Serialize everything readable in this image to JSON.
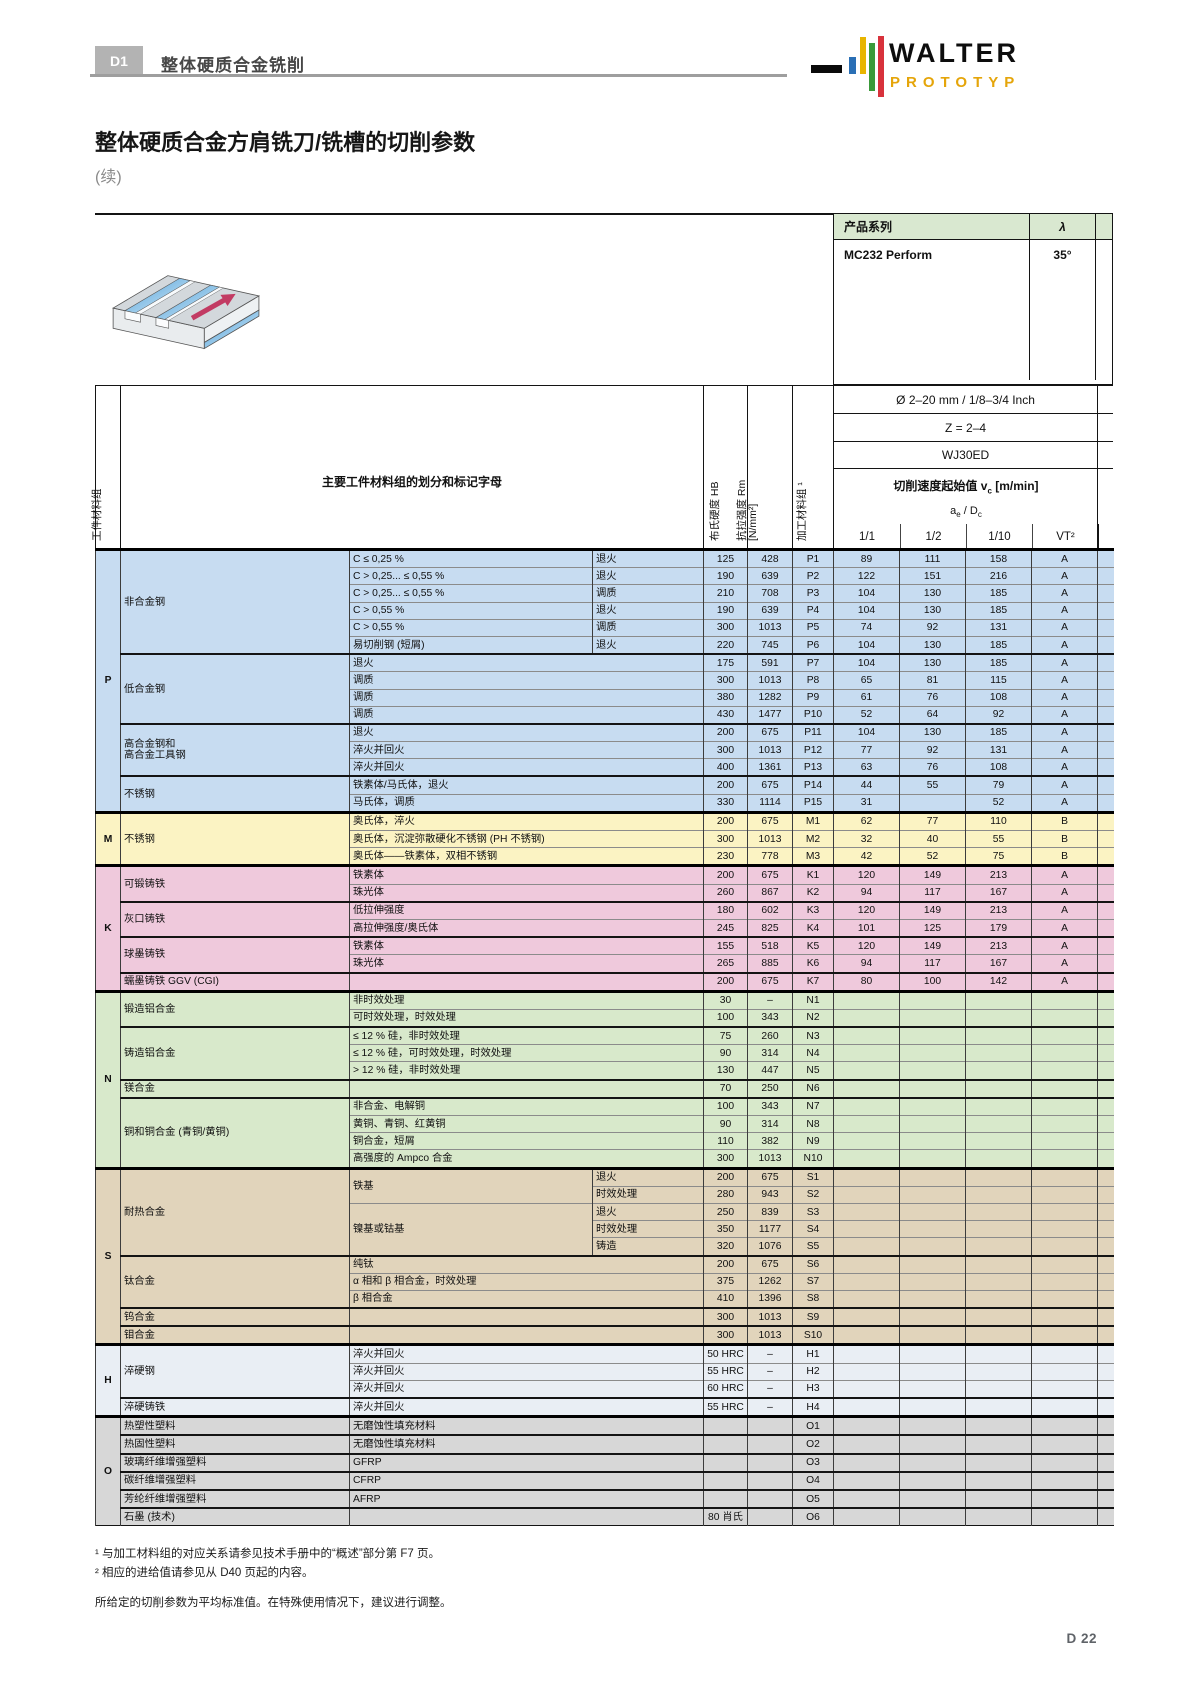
{
  "page": {
    "section_tab": "D1",
    "section_title": "整体硬质合金铣削",
    "brand": "WALTER",
    "brand_sub": "PROTOTYP",
    "title": "整体硬质合金方肩铣刀/铣槽的切削参数",
    "subtitle": "(续)",
    "page_number": "D 22"
  },
  "product_table": {
    "series_label": "产品系列",
    "lambda_label": "λ",
    "series_name": "MC232 Perform",
    "lambda_value": "35°"
  },
  "tool_header": {
    "diameter": "Ø 2–20 mm / 1/8–3/4 Inch",
    "teeth": "Z = 2–4",
    "grade": "WJ30ED",
    "speed_title_pre": "切削速度起始值 v",
    "speed_title_sub": "c",
    "speed_title_post": " [m/min]",
    "ratio_pre": "a",
    "ratio_sub": "e",
    "ratio_mid": " / D",
    "ratio_sub2": "c",
    "cols": [
      "1/1",
      "1/2",
      "1/10",
      "VT²"
    ]
  },
  "table_head": {
    "material_group": "工件材料组",
    "classification": "主要工件材料组的划分和标记字母",
    "hardness": "布氏硬度 HB",
    "strength_l1": "抗拉强度 Rm",
    "strength_l2": "[N/mm²]",
    "machining_group": "加工材料组 ¹"
  },
  "material_table": {
    "groups": [
      {
        "letter": "P",
        "color": "#c7dcf1",
        "blocks": [
          {
            "cat": "非合金钢",
            "rows": [
              {
                "d": "C ≤ 0,25 %",
                "t": "退火",
                "hb": "125",
                "rm": "428",
                "c": "P1",
                "v": [
                  "89",
                  "111",
                  "158",
                  "A"
                ]
              },
              {
                "d": "C > 0,25... ≤ 0,55 %",
                "t": "退火",
                "hb": "190",
                "rm": "639",
                "c": "P2",
                "v": [
                  "122",
                  "151",
                  "216",
                  "A"
                ]
              },
              {
                "d": "C > 0,25... ≤ 0,55 %",
                "t": "调质",
                "hb": "210",
                "rm": "708",
                "c": "P3",
                "v": [
                  "104",
                  "130",
                  "185",
                  "A"
                ]
              },
              {
                "d": "C > 0,55 %",
                "t": "退火",
                "hb": "190",
                "rm": "639",
                "c": "P4",
                "v": [
                  "104",
                  "130",
                  "185",
                  "A"
                ]
              },
              {
                "d": "C > 0,55 %",
                "t": "调质",
                "hb": "300",
                "rm": "1013",
                "c": "P5",
                "v": [
                  "74",
                  "92",
                  "131",
                  "A"
                ]
              },
              {
                "d": "易切削钢 (短屑)",
                "t": "退火",
                "hb": "220",
                "rm": "745",
                "c": "P6",
                "v": [
                  "104",
                  "130",
                  "185",
                  "A"
                ]
              }
            ]
          },
          {
            "cat": "低合金钢",
            "rows": [
              {
                "d": "退火",
                "hb": "175",
                "rm": "591",
                "c": "P7",
                "v": [
                  "104",
                  "130",
                  "185",
                  "A"
                ]
              },
              {
                "d": "调质",
                "hb": "300",
                "rm": "1013",
                "c": "P8",
                "v": [
                  "65",
                  "81",
                  "115",
                  "A"
                ]
              },
              {
                "d": "调质",
                "hb": "380",
                "rm": "1282",
                "c": "P9",
                "v": [
                  "61",
                  "76",
                  "108",
                  "A"
                ]
              },
              {
                "d": "调质",
                "hb": "430",
                "rm": "1477",
                "c": "P10",
                "v": [
                  "52",
                  "64",
                  "92",
                  "A"
                ]
              }
            ]
          },
          {
            "cat": "高合金钢和\n高合金工具钢",
            "rows": [
              {
                "d": "退火",
                "hb": "200",
                "rm": "675",
                "c": "P11",
                "v": [
                  "104",
                  "130",
                  "185",
                  "A"
                ]
              },
              {
                "d": "淬火并回火",
                "hb": "300",
                "rm": "1013",
                "c": "P12",
                "v": [
                  "77",
                  "92",
                  "131",
                  "A"
                ]
              },
              {
                "d": "淬火并回火",
                "hb": "400",
                "rm": "1361",
                "c": "P13",
                "v": [
                  "63",
                  "76",
                  "108",
                  "A"
                ]
              }
            ]
          },
          {
            "cat": "不锈钢",
            "rows": [
              {
                "d": "铁素体/马氏体，退火",
                "hb": "200",
                "rm": "675",
                "c": "P14",
                "v": [
                  "44",
                  "55",
                  "79",
                  "A"
                ]
              },
              {
                "d": "马氏体，调质",
                "hb": "330",
                "rm": "1114",
                "c": "P15",
                "v": [
                  "31",
                  "",
                  "52",
                  "A"
                ]
              }
            ]
          }
        ]
      },
      {
        "letter": "M",
        "color": "#fbf3c3",
        "blocks": [
          {
            "cat": "不锈钢",
            "rows": [
              {
                "d": "奥氏体，淬火",
                "hb": "200",
                "rm": "675",
                "c": "M1",
                "v": [
                  "62",
                  "77",
                  "110",
                  "B"
                ]
              },
              {
                "d": "奥氏体，沉淀弥散硬化不锈钢 (PH 不锈钢)",
                "hb": "300",
                "rm": "1013",
                "c": "M2",
                "v": [
                  "32",
                  "40",
                  "55",
                  "B"
                ]
              },
              {
                "d": "奥氏体——铁素体，双相不锈钢",
                "hb": "230",
                "rm": "778",
                "c": "M3",
                "v": [
                  "42",
                  "52",
                  "75",
                  "B"
                ]
              }
            ]
          }
        ]
      },
      {
        "letter": "K",
        "color": "#efc9dc",
        "blocks": [
          {
            "cat": "可锻铸铁",
            "rows": [
              {
                "d": "铁素体",
                "hb": "200",
                "rm": "675",
                "c": "K1",
                "v": [
                  "120",
                  "149",
                  "213",
                  "A"
                ]
              },
              {
                "d": "珠光体",
                "hb": "260",
                "rm": "867",
                "c": "K2",
                "v": [
                  "94",
                  "117",
                  "167",
                  "A"
                ]
              }
            ]
          },
          {
            "cat": "灰口铸铁",
            "rows": [
              {
                "d": "低拉伸强度",
                "hb": "180",
                "rm": "602",
                "c": "K3",
                "v": [
                  "120",
                  "149",
                  "213",
                  "A"
                ]
              },
              {
                "d": "高拉伸强度/奥氏体",
                "hb": "245",
                "rm": "825",
                "c": "K4",
                "v": [
                  "101",
                  "125",
                  "179",
                  "A"
                ]
              }
            ]
          },
          {
            "cat": "球墨铸铁",
            "rows": [
              {
                "d": "铁素体",
                "hb": "155",
                "rm": "518",
                "c": "K5",
                "v": [
                  "120",
                  "149",
                  "213",
                  "A"
                ]
              },
              {
                "d": "珠光体",
                "hb": "265",
                "rm": "885",
                "c": "K6",
                "v": [
                  "94",
                  "117",
                  "167",
                  "A"
                ]
              }
            ]
          },
          {
            "cat": "蠕墨铸铁 GGV (CGI)",
            "rows": [
              {
                "d": "",
                "hb": "200",
                "rm": "675",
                "c": "K7",
                "v": [
                  "80",
                  "100",
                  "142",
                  "A"
                ]
              }
            ]
          }
        ]
      },
      {
        "letter": "N",
        "color": "#d8e9cb",
        "blocks": [
          {
            "cat": "锻造铝合金",
            "rows": [
              {
                "d": "非时效处理",
                "hb": "30",
                "rm": "–",
                "c": "N1",
                "v": [
                  "",
                  "",
                  "",
                  ""
                ]
              },
              {
                "d": "可时效处理，时效处理",
                "hb": "100",
                "rm": "343",
                "c": "N2",
                "v": [
                  "",
                  "",
                  "",
                  ""
                ]
              }
            ]
          },
          {
            "cat": "铸造铝合金",
            "rows": [
              {
                "d": "≤ 12 % 硅，非时效处理",
                "hb": "75",
                "rm": "260",
                "c": "N3",
                "v": [
                  "",
                  "",
                  "",
                  ""
                ]
              },
              {
                "d": "≤ 12 % 硅，可时效处理，时效处理",
                "hb": "90",
                "rm": "314",
                "c": "N4",
                "v": [
                  "",
                  "",
                  "",
                  ""
                ]
              },
              {
                "d": "> 12 % 硅，非时效处理",
                "hb": "130",
                "rm": "447",
                "c": "N5",
                "v": [
                  "",
                  "",
                  "",
                  ""
                ]
              }
            ]
          },
          {
            "cat": "镁合金",
            "rows": [
              {
                "d": "",
                "hb": "70",
                "rm": "250",
                "c": "N6",
                "v": [
                  "",
                  "",
                  "",
                  ""
                ]
              }
            ]
          },
          {
            "cat": "铜和铜合金 (青铜/黄铜)",
            "rows": [
              {
                "d": "非合金、电解铜",
                "hb": "100",
                "rm": "343",
                "c": "N7",
                "v": [
                  "",
                  "",
                  "",
                  ""
                ]
              },
              {
                "d": "黄铜、青铜、红黄铜",
                "hb": "90",
                "rm": "314",
                "c": "N8",
                "v": [
                  "",
                  "",
                  "",
                  ""
                ]
              },
              {
                "d": "铜合金，短屑",
                "hb": "110",
                "rm": "382",
                "c": "N9",
                "v": [
                  "",
                  "",
                  "",
                  ""
                ]
              },
              {
                "d": "高强度的 Ampco 合金",
                "hb": "300",
                "rm": "1013",
                "c": "N10",
                "v": [
                  "",
                  "",
                  "",
                  ""
                ]
              }
            ]
          }
        ]
      },
      {
        "letter": "S",
        "color": "#e1d4bb",
        "blocks": [
          {
            "cat": "耐热合金",
            "rows": [
              {
                "d": "铁基",
                "ds": 2,
                "t": "退火",
                "hb": "200",
                "rm": "675",
                "c": "S1",
                "v": [
                  "",
                  "",
                  "",
                  ""
                ]
              },
              {
                "d": null,
                "t": "时效处理",
                "hb": "280",
                "rm": "943",
                "c": "S2",
                "v": [
                  "",
                  "",
                  "",
                  ""
                ]
              },
              {
                "d": "镍基或钴基",
                "ds": 3,
                "t": "退火",
                "hb": "250",
                "rm": "839",
                "c": "S3",
                "v": [
                  "",
                  "",
                  "",
                  ""
                ]
              },
              {
                "d": null,
                "t": "时效处理",
                "hb": "350",
                "rm": "1177",
                "c": "S4",
                "v": [
                  "",
                  "",
                  "",
                  ""
                ]
              },
              {
                "d": null,
                "t": "铸造",
                "hb": "320",
                "rm": "1076",
                "c": "S5",
                "v": [
                  "",
                  "",
                  "",
                  ""
                ]
              }
            ]
          },
          {
            "cat": "钛合金",
            "rows": [
              {
                "d": "纯钛",
                "hb": "200",
                "rm": "675",
                "c": "S6",
                "v": [
                  "",
                  "",
                  "",
                  ""
                ]
              },
              {
                "d": "α 相和 β 相合金，时效处理",
                "hb": "375",
                "rm": "1262",
                "c": "S7",
                "v": [
                  "",
                  "",
                  "",
                  ""
                ]
              },
              {
                "d": "β 相合金",
                "hb": "410",
                "rm": "1396",
                "c": "S8",
                "v": [
                  "",
                  "",
                  "",
                  ""
                ]
              }
            ]
          },
          {
            "cat": "钨合金",
            "rows": [
              {
                "d": "",
                "hb": "300",
                "rm": "1013",
                "c": "S9",
                "v": [
                  "",
                  "",
                  "",
                  ""
                ]
              }
            ]
          },
          {
            "cat": "钼合金",
            "rows": [
              {
                "d": "",
                "hb": "300",
                "rm": "1013",
                "c": "S10",
                "v": [
                  "",
                  "",
                  "",
                  ""
                ]
              }
            ]
          }
        ]
      },
      {
        "letter": "H",
        "color": "#e9eef4",
        "blocks": [
          {
            "cat": "淬硬钢",
            "rows": [
              {
                "d": "淬火并回火",
                "hb": "50 HRC",
                "rm": "–",
                "c": "H1",
                "v": [
                  "",
                  "",
                  "",
                  ""
                ]
              },
              {
                "d": "淬火并回火",
                "hb": "55 HRC",
                "rm": "–",
                "c": "H2",
                "v": [
                  "",
                  "",
                  "",
                  ""
                ]
              },
              {
                "d": "淬火并回火",
                "hb": "60 HRC",
                "rm": "–",
                "c": "H3",
                "v": [
                  "",
                  "",
                  "",
                  ""
                ]
              }
            ]
          },
          {
            "cat": "淬硬铸铁",
            "rows": [
              {
                "d": "淬火并回火",
                "hb": "55 HRC",
                "rm": "–",
                "c": "H4",
                "v": [
                  "",
                  "",
                  "",
                  ""
                ]
              }
            ]
          }
        ]
      },
      {
        "letter": "O",
        "color": "#d7d7d7",
        "blocks": [
          {
            "cat": "热塑性塑料",
            "rows": [
              {
                "d": "无磨蚀性填充材料",
                "hb": "",
                "rm": "",
                "c": "O1",
                "v": [
                  "",
                  "",
                  "",
                  ""
                ]
              }
            ]
          },
          {
            "cat": "热固性塑料",
            "rows": [
              {
                "d": "无磨蚀性填充材料",
                "hb": "",
                "rm": "",
                "c": "O2",
                "v": [
                  "",
                  "",
                  "",
                  ""
                ]
              }
            ]
          },
          {
            "cat": "玻璃纤维增强塑料",
            "rows": [
              {
                "d": "GFRP",
                "hb": "",
                "rm": "",
                "c": "O3",
                "v": [
                  "",
                  "",
                  "",
                  ""
                ]
              }
            ]
          },
          {
            "cat": "碳纤维增强塑料",
            "rows": [
              {
                "d": "CFRP",
                "hb": "",
                "rm": "",
                "c": "O4",
                "v": [
                  "",
                  "",
                  "",
                  ""
                ]
              }
            ]
          },
          {
            "cat": "芳纶纤维增强塑料",
            "rows": [
              {
                "d": "AFRP",
                "hb": "",
                "rm": "",
                "c": "O5",
                "v": [
                  "",
                  "",
                  "",
                  ""
                ]
              }
            ]
          },
          {
            "cat": "石墨 (技术)",
            "rows": [
              {
                "d": "",
                "hb": "80 肖氏",
                "rm": "",
                "c": "O6",
                "v": [
                  "",
                  "",
                  "",
                  ""
                ]
              }
            ]
          }
        ]
      }
    ]
  },
  "footnotes": [
    "¹ 与加工材料组的对应关系请参见技术手册中的“概述”部分第 F7 页。",
    "² 相应的进给值请参见从 D40 页起的内容。"
  ],
  "note": "所给定的切削参数为平均标准值。在特殊使用情况下，建议进行调整。"
}
